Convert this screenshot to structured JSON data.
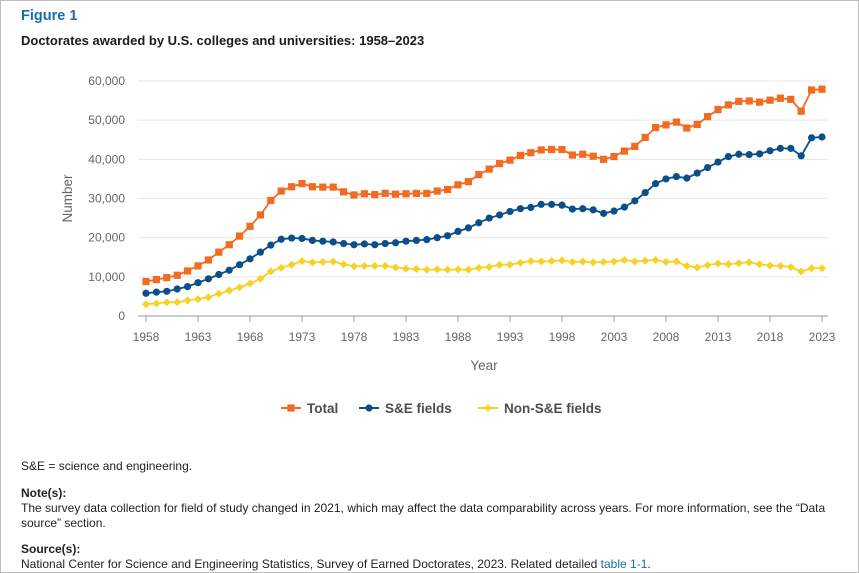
{
  "figure": {
    "label": "Figure 1",
    "title": "Doctorates awarded by U.S. colleges and universities: 1958–2023"
  },
  "chart_data": {
    "type": "line",
    "xlabel": "Year",
    "ylabel": "Number",
    "ylim": [
      0,
      60000
    ],
    "yticks": [
      "0",
      "10,000",
      "20,000",
      "30,000",
      "40,000",
      "50,000",
      "60,000"
    ],
    "xticks": [
      "1958",
      "1963",
      "1968",
      "1973",
      "1978",
      "1983",
      "1988",
      "1993",
      "1998",
      "2003",
      "2008",
      "2013",
      "2018",
      "2023"
    ],
    "grid": "horizontal",
    "legend_position": "bottom",
    "x": [
      1958,
      1959,
      1960,
      1961,
      1962,
      1963,
      1964,
      1965,
      1966,
      1967,
      1968,
      1969,
      1970,
      1971,
      1972,
      1973,
      1974,
      1975,
      1976,
      1977,
      1978,
      1979,
      1980,
      1981,
      1982,
      1983,
      1984,
      1985,
      1986,
      1987,
      1988,
      1989,
      1990,
      1991,
      1992,
      1993,
      1994,
      1995,
      1996,
      1997,
      1998,
      1999,
      2000,
      2001,
      2002,
      2003,
      2004,
      2005,
      2006,
      2007,
      2008,
      2009,
      2010,
      2011,
      2012,
      2013,
      2014,
      2015,
      2016,
      2017,
      2018,
      2019,
      2020,
      2021,
      2022,
      2023
    ],
    "series": [
      {
        "name": "Total",
        "color": "#f26b21",
        "marker": "square",
        "values": [
          8800,
          9300,
          9800,
          10400,
          11500,
          12800,
          14300,
          16300,
          18200,
          20400,
          22900,
          25800,
          29500,
          31900,
          33000,
          33800,
          33000,
          32900,
          32900,
          31700,
          30900,
          31200,
          31000,
          31300,
          31100,
          31200,
          31300,
          31300,
          31900,
          32300,
          33500,
          34300,
          36100,
          37500,
          38900,
          39800,
          41000,
          41700,
          42400,
          42500,
          42500,
          41100,
          41300,
          40800,
          40000,
          40700,
          42100,
          43300,
          45600,
          48100,
          48800,
          49500,
          48000,
          48900,
          50900,
          52700,
          53900,
          54800,
          54900,
          54600,
          55100,
          55600,
          55300,
          52300,
          57700,
          57900
        ]
      },
      {
        "name": "S&E fields",
        "color": "#0b4f8a",
        "marker": "circle",
        "values": [
          5800,
          6100,
          6300,
          6900,
          7500,
          8500,
          9500,
          10600,
          11700,
          13100,
          14600,
          16300,
          18100,
          19600,
          19900,
          19800,
          19300,
          19100,
          18900,
          18500,
          18200,
          18400,
          18200,
          18500,
          18700,
          19100,
          19300,
          19500,
          20000,
          20500,
          21600,
          22500,
          23800,
          25000,
          25800,
          26700,
          27400,
          27700,
          28500,
          28500,
          28300,
          27300,
          27400,
          27100,
          26200,
          26800,
          27800,
          29400,
          31500,
          33800,
          35000,
          35600,
          35200,
          36500,
          37900,
          39300,
          40700,
          41300,
          41200,
          41400,
          42200,
          42800,
          42800,
          40900,
          45500,
          45700
        ]
      },
      {
        "name": "Non-S&E fields",
        "color": "#f6d226",
        "marker": "diamond",
        "values": [
          3000,
          3200,
          3500,
          3500,
          4000,
          4300,
          4800,
          5700,
          6500,
          7300,
          8300,
          9500,
          11400,
          12300,
          13100,
          14000,
          13700,
          13800,
          13900,
          13200,
          12700,
          12800,
          12800,
          12800,
          12400,
          12100,
          12000,
          11800,
          11900,
          11800,
          11900,
          11800,
          12300,
          12500,
          13100,
          13100,
          13600,
          14000,
          13900,
          14000,
          14200,
          13800,
          13900,
          13700,
          13800,
          13900,
          14300,
          13900,
          14100,
          14300,
          13800,
          13900,
          12800,
          12400,
          13000,
          13400,
          13200,
          13500,
          13700,
          13200,
          12900,
          12800,
          12500,
          11400,
          12200,
          12200
        ]
      }
    ]
  },
  "footnotes": {
    "abbreviation": "S&E = science and engineering.",
    "note_heading": "Note(s):",
    "note_text": "The survey data collection for field of study changed in 2021, which may affect the data comparability across years. For more information, see the “Data source” section.",
    "source_heading": "Source(s):",
    "source_text": "National Center for Science and Engineering Statistics, Survey of Earned Doctorates, 2023. Related detailed ",
    "source_link": "table 1-1",
    "source_end": "."
  }
}
